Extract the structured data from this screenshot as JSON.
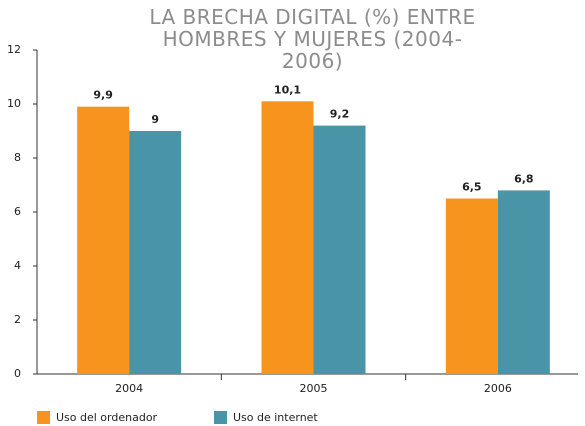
{
  "chart_data": {
    "type": "bar",
    "title": "LA BRECHA DIGITAL (%) ENTRE HOMBRES Y MUJERES (2004-2006)",
    "categories": [
      "2004",
      "2005",
      "2006"
    ],
    "series": [
      {
        "name": "Uso del ordenador",
        "color": "#f7941d",
        "values": [
          9.9,
          10.1,
          6.5
        ],
        "value_labels": [
          "9,9",
          "10,1",
          "6,5"
        ]
      },
      {
        "name": "Uso de internet",
        "color": "#4a94a8",
        "values": [
          9,
          9.2,
          6.8
        ],
        "value_labels": [
          "9",
          "9,2",
          "6,8"
        ]
      }
    ],
    "ylim": [
      0,
      12
    ],
    "yticks": [
      0,
      2,
      4,
      6,
      8,
      10,
      12
    ],
    "grid": false
  }
}
